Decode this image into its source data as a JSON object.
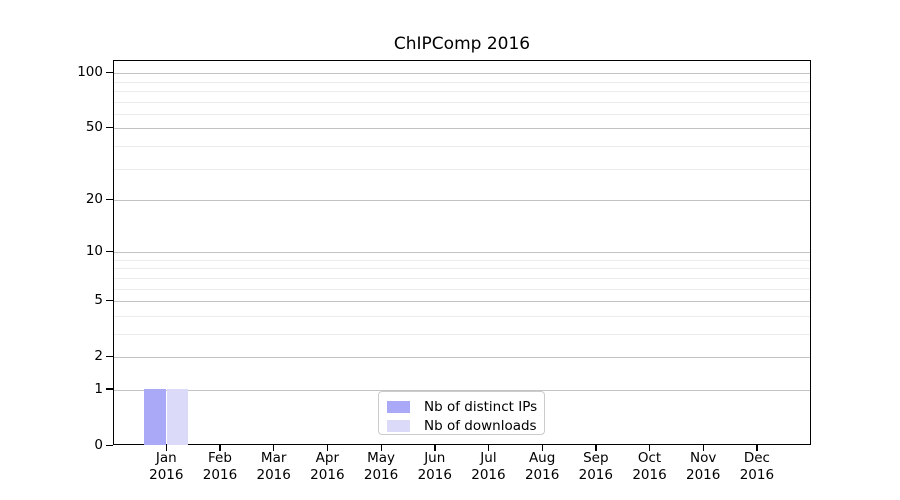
{
  "chart_data": {
    "type": "bar",
    "title": "ChIPComp 2016",
    "x_categories": [
      {
        "label": "Jan",
        "sublabel": "2016"
      },
      {
        "label": "Feb",
        "sublabel": "2016"
      },
      {
        "label": "Mar",
        "sublabel": "2016"
      },
      {
        "label": "Apr",
        "sublabel": "2016"
      },
      {
        "label": "May",
        "sublabel": "2016"
      },
      {
        "label": "Jun",
        "sublabel": "2016"
      },
      {
        "label": "Jul",
        "sublabel": "2016"
      },
      {
        "label": "Aug",
        "sublabel": "2016"
      },
      {
        "label": "Sep",
        "sublabel": "2016"
      },
      {
        "label": "Oct",
        "sublabel": "2016"
      },
      {
        "label": "Nov",
        "sublabel": "2016"
      },
      {
        "label": "Dec",
        "sublabel": "2016"
      }
    ],
    "series": [
      {
        "name": "Nb of distinct IPs",
        "color": "#a9a9f8",
        "values": [
          1,
          0,
          0,
          0,
          0,
          0,
          0,
          0,
          0,
          0,
          0,
          0
        ]
      },
      {
        "name": "Nb of downloads",
        "color": "#dbdbf9",
        "values": [
          1,
          0,
          0,
          0,
          0,
          0,
          0,
          0,
          0,
          0,
          0,
          0
        ]
      }
    ],
    "y_axis": {
      "scale": "log1p",
      "major_ticks": [
        0,
        1,
        2,
        5,
        10,
        20,
        50,
        100
      ],
      "minor_gridlines": [
        3,
        4,
        6,
        7,
        8,
        9,
        30,
        40,
        60,
        70,
        80,
        90
      ],
      "range": [
        0,
        117
      ]
    },
    "legend": {
      "position": "lower center"
    },
    "grid": true,
    "colors": {
      "major_grid": "#c3c3c3",
      "minor_grid": "#ececec",
      "axis": "#000000",
      "background": "#ffffff"
    }
  }
}
